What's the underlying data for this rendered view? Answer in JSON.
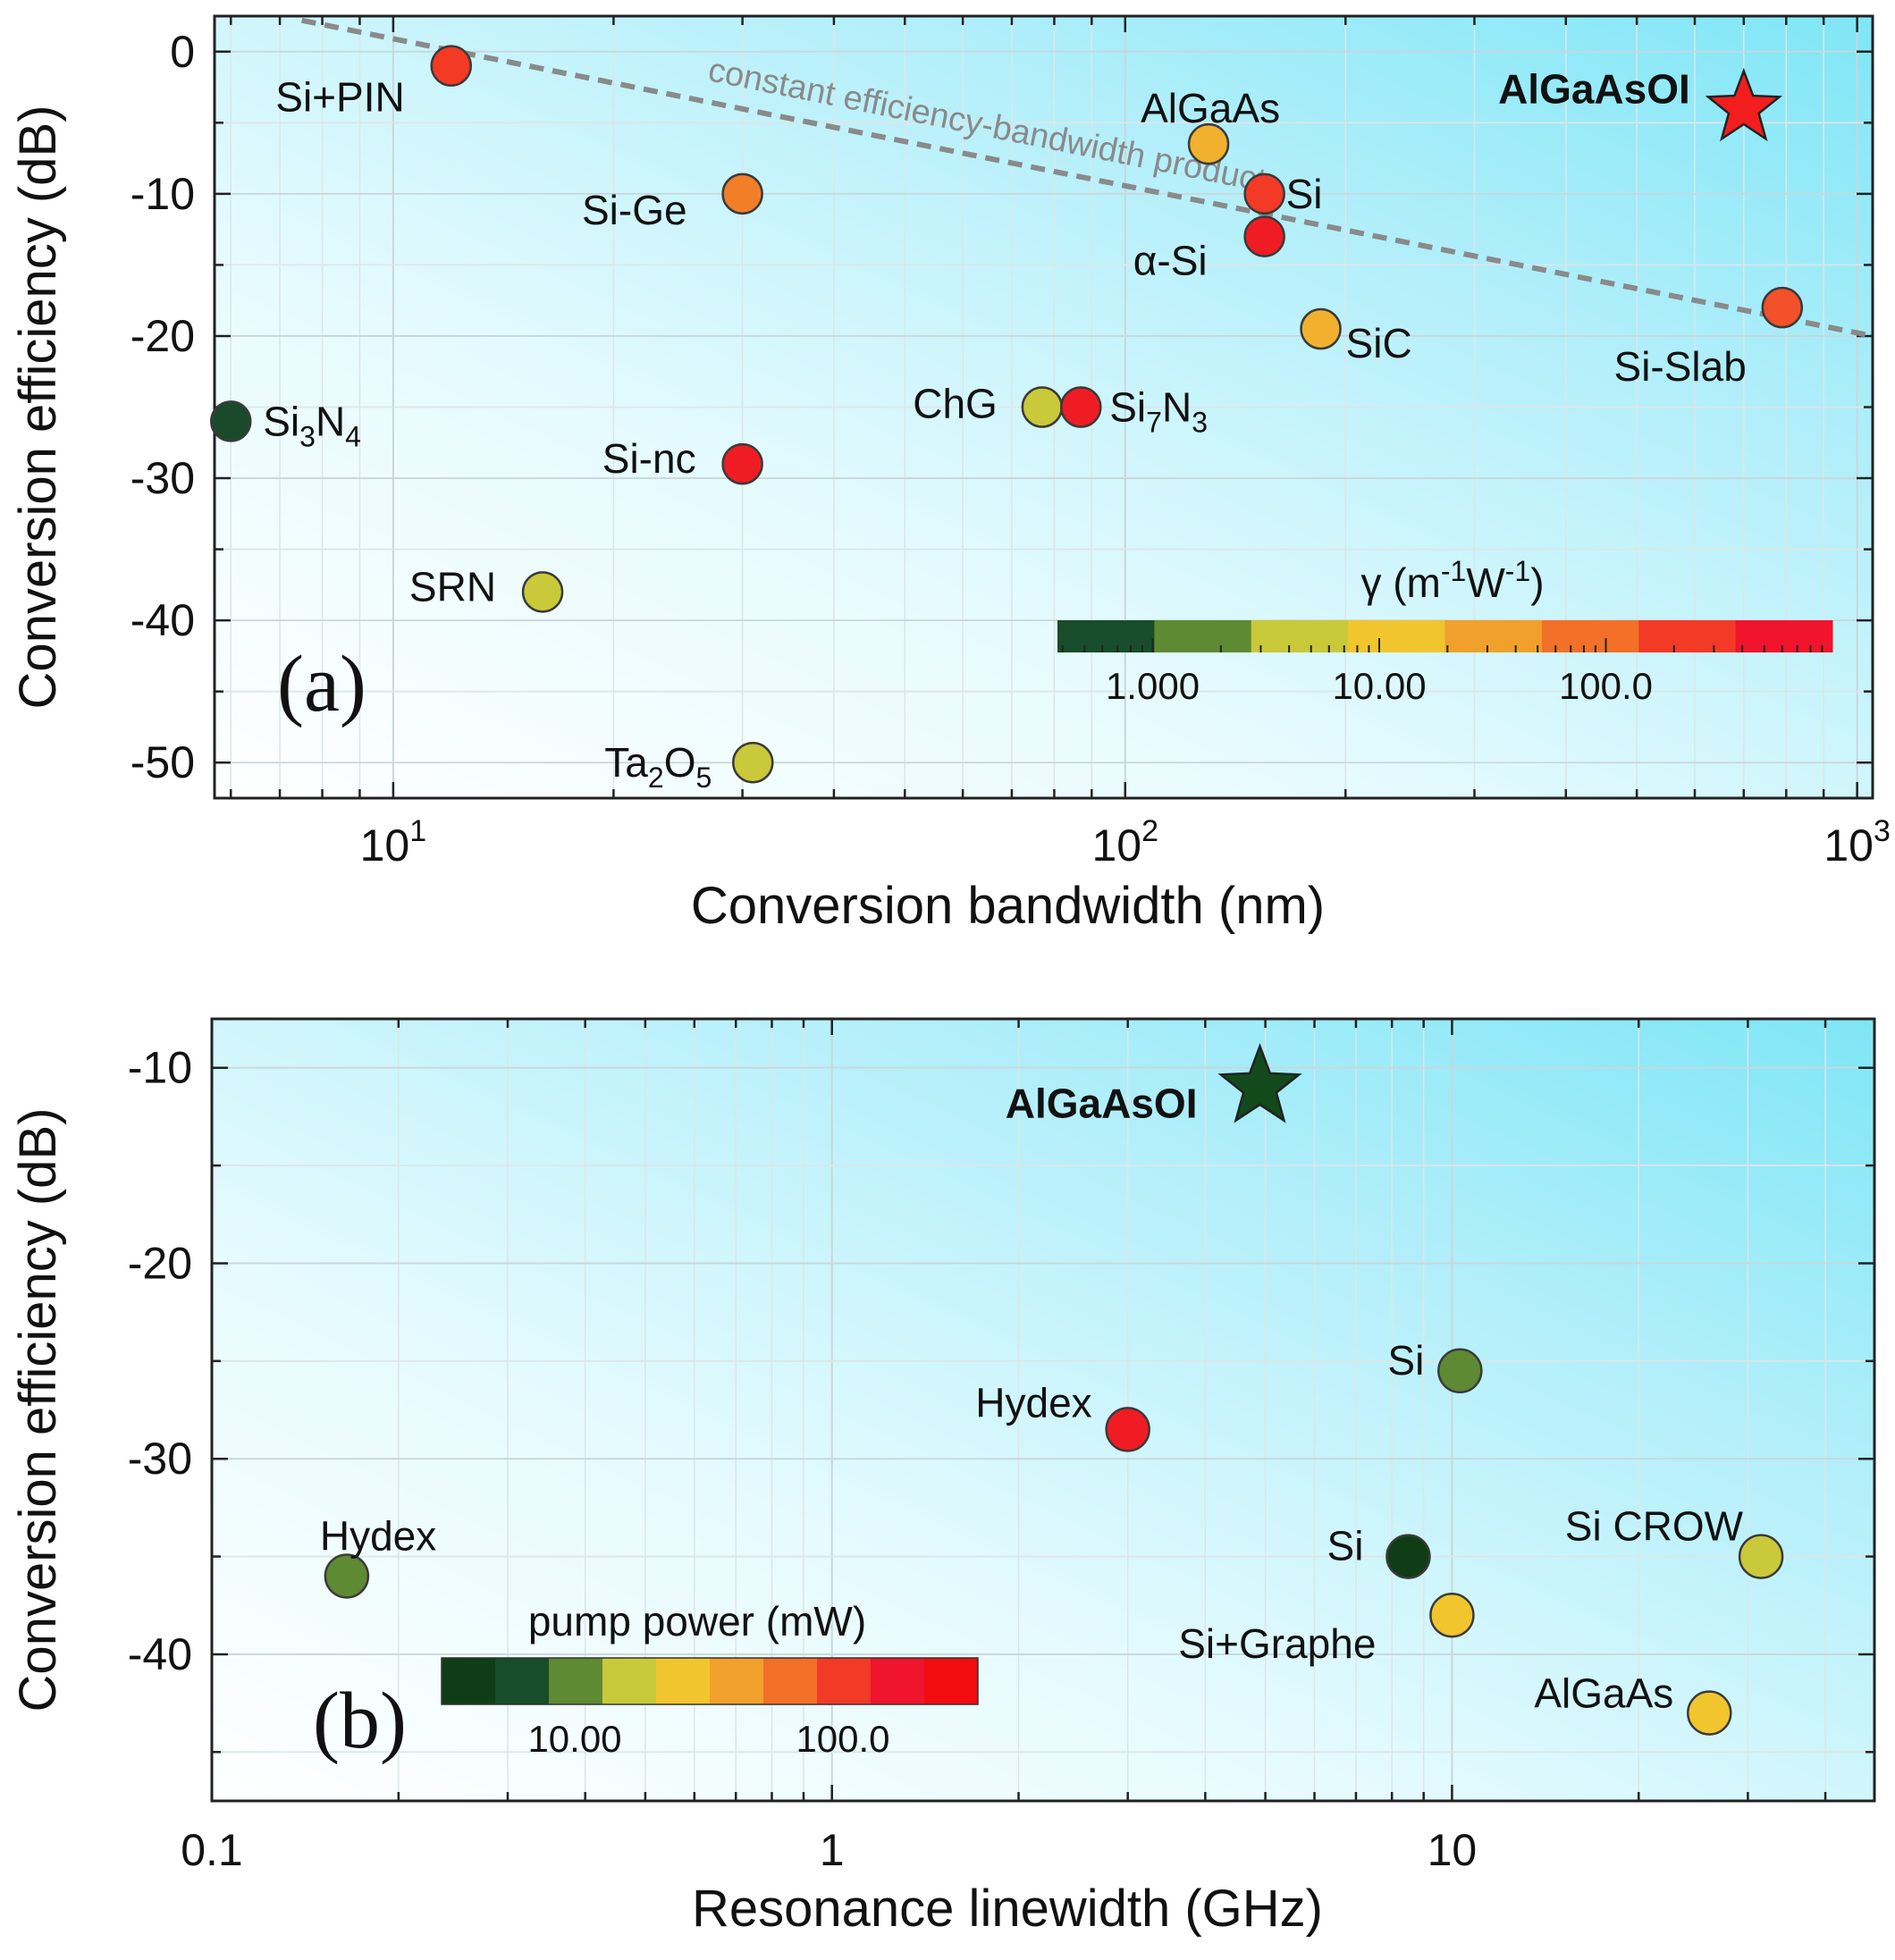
{
  "chart_data": [
    {
      "id": "a",
      "type": "scatter",
      "panel_label": "(a)",
      "xlabel": "Conversion bandwidth (nm)",
      "ylabel": "Conversion efficiency (dB)",
      "xscale": "log",
      "xlim": [
        5.7,
        1050
      ],
      "ylim": [
        -52.5,
        2.5
      ],
      "xticks": [
        {
          "value": 10,
          "base": "10",
          "exp": "1"
        },
        {
          "value": 100,
          "base": "10",
          "exp": "2"
        },
        {
          "value": 1000,
          "base": "10",
          "exp": "3"
        }
      ],
      "yticks": [
        0,
        -10,
        -20,
        -30,
        -40,
        -50
      ],
      "trend_line": {
        "label": "constant efficiency-bandwidth product",
        "x": [
          7.5,
          1050
        ],
        "y": [
          2.2,
          -20.0
        ]
      },
      "points": [
        {
          "name": "Si+PIN",
          "x": 12,
          "y": -1,
          "color": "#f33a24"
        },
        {
          "name": "AlGaAs",
          "x": 130,
          "y": -6.5,
          "color": "#f1b12e"
        },
        {
          "name": "AlGaAsOI",
          "x": 700,
          "y": -4,
          "color": "#f21e1e",
          "marker": "star",
          "bold": true
        },
        {
          "name": "Si-Ge",
          "x": 30,
          "y": -10,
          "color": "#f27e28"
        },
        {
          "name": "Si",
          "x": 155,
          "y": -10,
          "color": "#f23a26"
        },
        {
          "name": "α-Si",
          "x": 155,
          "y": -13,
          "color": "#f01c24"
        },
        {
          "name": "Si-Slab",
          "x": 790,
          "y": -18,
          "color": "#f2512a"
        },
        {
          "name": "SiC",
          "x": 185,
          "y": -19.5,
          "color": "#f1b12e"
        },
        {
          "name": "Si3N4",
          "x": 6,
          "y": -26,
          "color": "#1a4a2a",
          "label_sub": [
            "Si",
            "3",
            "N",
            "4"
          ]
        },
        {
          "name": "ChG",
          "x": 77,
          "y": -25,
          "color": "#c9c93a"
        },
        {
          "name": "Si7N3",
          "x": 87,
          "y": -25,
          "color": "#f01c24",
          "label_sub": [
            "Si",
            "7",
            "N",
            "3"
          ]
        },
        {
          "name": "Si-nc",
          "x": 30,
          "y": -29,
          "color": "#f01c24"
        },
        {
          "name": "SRN",
          "x": 16,
          "y": -38,
          "color": "#c9c93a"
        },
        {
          "name": "Ta2O5",
          "x": 31,
          "y": -50,
          "color": "#c9c93a",
          "label_sub": [
            "Ta",
            "2",
            "O",
            "5"
          ]
        }
      ],
      "colorbar": {
        "title": "γ (m-1W-1)",
        "colors": [
          "#174d2a",
          "#5e8a33",
          "#c9c93a",
          "#f1c52e",
          "#f1a02c",
          "#f27027",
          "#f23a26",
          "#f0142c"
        ],
        "ticks": [
          "1.000",
          "10.00",
          "100.0"
        ]
      }
    },
    {
      "id": "b",
      "type": "scatter",
      "panel_label": "(b)",
      "xlabel": "Resonance linewidth (GHz)",
      "ylabel": "Conversion efficiency (dB)",
      "xscale": "log",
      "xlim": [
        0.1,
        48
      ],
      "ylim": [
        -47.5,
        -7.5
      ],
      "xticks": [
        {
          "value": 0.1,
          "text": "0.1"
        },
        {
          "value": 1,
          "text": "1"
        },
        {
          "value": 10,
          "text": "10"
        }
      ],
      "yticks": [
        -10,
        -20,
        -30,
        -40
      ],
      "points": [
        {
          "name": "AlGaAsOI",
          "x": 4.9,
          "y": -11,
          "color": "#124a1c",
          "marker": "star",
          "bold": true
        },
        {
          "name": "Si",
          "x": 10.3,
          "y": -25.5,
          "color": "#5e8a33"
        },
        {
          "name": "Hydex",
          "x": 3.0,
          "y": -28.5,
          "color": "#f01c24"
        },
        {
          "name": "Hydex",
          "x": 0.165,
          "y": -36,
          "color": "#5e8a33"
        },
        {
          "name": "Si",
          "x": 8.5,
          "y": -35,
          "color": "#0f3d16"
        },
        {
          "name": "Si CROW",
          "x": 31.5,
          "y": -35,
          "color": "#c9c93a"
        },
        {
          "name": "Si+Graphe",
          "x": 10,
          "y": -38,
          "color": "#f1c52e"
        },
        {
          "name": "AlGaAs",
          "x": 26,
          "y": -43,
          "color": "#f1c52e"
        }
      ],
      "colorbar": {
        "title": "pump power (mW)",
        "colors": [
          "#0f3d16",
          "#174d2a",
          "#5e8a33",
          "#c9c93a",
          "#f1c52e",
          "#f1a02c",
          "#f27027",
          "#f23a26",
          "#f0142c",
          "#f20c10"
        ],
        "ticks": [
          "10.00",
          "100.0"
        ]
      }
    }
  ]
}
